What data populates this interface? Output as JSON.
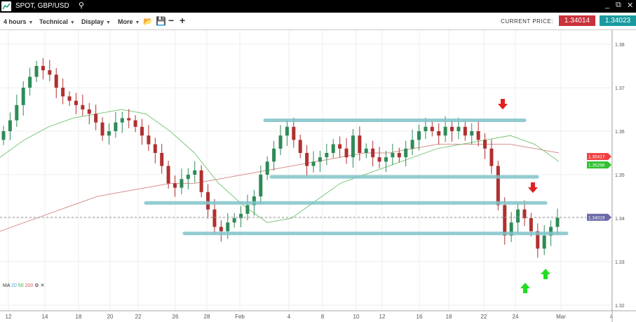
{
  "window": {
    "title": "SPOT, GBP/USD",
    "icons": [
      "chart-logo-icon",
      "search-icon",
      "minimize-icon",
      "popout-icon",
      "close-icon"
    ]
  },
  "toolbar": {
    "timeframe": "4 hours",
    "technical": "Technical",
    "display": "Display",
    "more": "More",
    "current_price_label": "CURRENT PRICE:",
    "bid": "1.34014",
    "ask": "1.34023",
    "bid_color": "#c8323c",
    "ask_color": "#1a9aa0"
  },
  "indicator": {
    "label": "MA",
    "p1": "20",
    "p2": "50",
    "p3": "200"
  },
  "chart_data": {
    "type": "candlestick",
    "instrument": "GBP/USD",
    "timeframe": "4 hours",
    "ylim": [
      1.318,
      1.385
    ],
    "yticks": [
      "1.38",
      "1.37",
      "1.36",
      "1.35",
      "1.34",
      "1.33",
      "1.32"
    ],
    "xticks": [
      "12",
      "14",
      "18",
      "20",
      "22",
      "26",
      "28",
      "Feb",
      "4",
      "8",
      "10",
      "12",
      "16",
      "18",
      "22",
      "24",
      "Mar",
      "4"
    ],
    "closes": [
      1.36,
      1.3625,
      1.366,
      1.37,
      1.3725,
      1.375,
      1.374,
      1.373,
      1.37,
      1.368,
      1.367,
      1.366,
      1.365,
      1.364,
      1.362,
      1.359,
      1.36,
      1.362,
      1.363,
      1.3625,
      1.361,
      1.359,
      1.357,
      1.355,
      1.352,
      1.348,
      1.347,
      1.349,
      1.35,
      1.351,
      1.346,
      1.342,
      1.338,
      1.337,
      1.339,
      1.34,
      1.341,
      1.343,
      1.345,
      1.35,
      1.353,
      1.356,
      1.359,
      1.361,
      1.358,
      1.355,
      1.352,
      1.353,
      1.354,
      1.355,
      1.357,
      1.356,
      1.354,
      1.359,
      1.355,
      1.356,
      1.354,
      1.353,
      1.354,
      1.355,
      1.354,
      1.356,
      1.358,
      1.36,
      1.361,
      1.36,
      1.359,
      1.361,
      1.36,
      1.361,
      1.359,
      1.36,
      1.358,
      1.356,
      1.352,
      1.343,
      1.336,
      1.339,
      1.342,
      1.34,
      1.337,
      1.333,
      1.336,
      1.338,
      1.3401
    ],
    "ma50": [
      1.354,
      1.358,
      1.361,
      1.363,
      1.364,
      1.365,
      1.364,
      1.36,
      1.355,
      1.348,
      1.343,
      1.339,
      1.34,
      1.344,
      1.348,
      1.35,
      1.352,
      1.354,
      1.356,
      1.357,
      1.358,
      1.359,
      1.357,
      1.353
    ],
    "ma200": [
      1.337,
      1.339,
      1.341,
      1.343,
      1.345,
      1.346,
      1.347,
      1.348,
      1.348,
      1.349,
      1.35,
      1.351,
      1.352,
      1.353,
      1.354,
      1.355,
      1.355,
      1.356,
      1.357,
      1.357,
      1.357,
      1.357,
      1.356,
      1.355
    ],
    "levels": [
      {
        "price": 1.3625,
        "from": "2",
        "to": "24"
      },
      {
        "price": 1.3495,
        "from": "3",
        "to": "25"
      },
      {
        "price": 1.3435,
        "from": "22",
        "to": "25"
      },
      {
        "price": 1.3365,
        "from": "27",
        "to": "27"
      }
    ],
    "price_tags": [
      {
        "value": "1.35417",
        "color": "#f04040"
      },
      {
        "value": "1.35266",
        "color": "#30c030"
      },
      {
        "value": "1.34019",
        "color": "#6a6aaa"
      }
    ],
    "current_price": 1.3402
  }
}
